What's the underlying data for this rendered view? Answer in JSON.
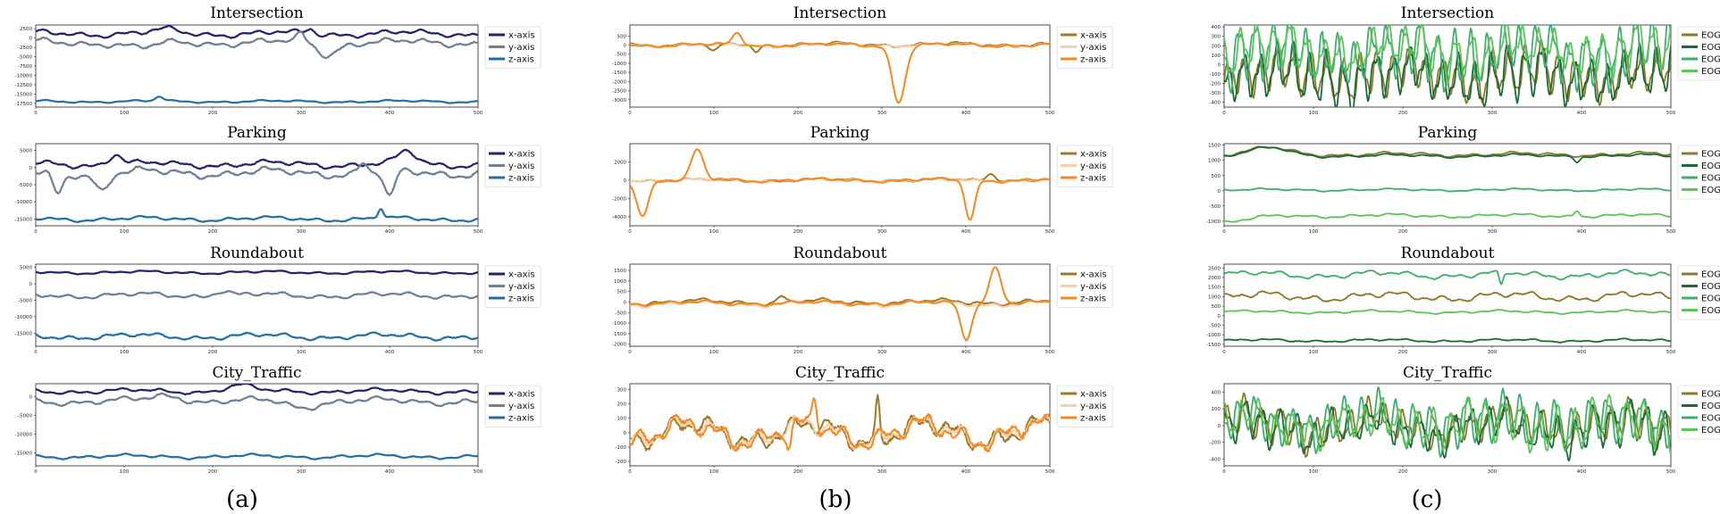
{
  "figure": {
    "captions": [
      "(a)",
      "(b)",
      "(c)"
    ]
  },
  "chart_data": [
    {
      "type": "line",
      "panel": "(a)",
      "title": "Intersection",
      "xlim": [
        0,
        500
      ],
      "ylim": [
        -18500,
        3500
      ],
      "xticks": [
        0,
        100,
        200,
        300,
        400,
        500
      ],
      "yticks": [
        2500,
        0,
        -2500,
        -5000,
        -7500,
        -10000,
        -12500,
        -15000,
        -17500
      ],
      "series": [
        {
          "name": "x-axis",
          "color": "#23236e",
          "base": 1200,
          "amp": 1300,
          "seed": 1,
          "bumps": [
            [
              150,
              900,
              18
            ],
            [
              310,
              1200,
              6
            ]
          ]
        },
        {
          "name": "y-axis",
          "color": "#6f7f95",
          "base": -1200,
          "amp": 1500,
          "seed": 2,
          "bumps": [
            [
              120,
              -1500,
              25
            ],
            [
              330,
              -3200,
              14
            ],
            [
              300,
              2200,
              6
            ]
          ]
        },
        {
          "name": "z-axis",
          "color": "#2370a8",
          "base": -17000,
          "amp": 500,
          "seed": 3,
          "bumps": [
            [
              140,
              1200,
              6
            ]
          ]
        }
      ]
    },
    {
      "type": "line",
      "panel": "(a)",
      "title": "Parking",
      "xlim": [
        0,
        500
      ],
      "ylim": [
        -17000,
        7000
      ],
      "xticks": [
        0,
        100,
        200,
        300,
        400,
        500
      ],
      "yticks": [
        5000,
        0,
        -5000,
        -10000,
        -15000
      ],
      "series": [
        {
          "name": "x-axis",
          "color": "#23236e",
          "base": 1000,
          "amp": 1500,
          "seed": 4,
          "bumps": [
            [
              90,
              3000,
              10
            ],
            [
              420,
              3500,
              14
            ]
          ]
        },
        {
          "name": "y-axis",
          "color": "#6f7f95",
          "base": -1500,
          "amp": 2000,
          "seed": 5,
          "bumps": [
            [
              25,
              -6000,
              8
            ],
            [
              75,
              -5000,
              10
            ],
            [
              400,
              -8000,
              8
            ],
            [
              370,
              3000,
              6
            ]
          ]
        },
        {
          "name": "z-axis",
          "color": "#2370a8",
          "base": -15000,
          "amp": 1000,
          "seed": 6,
          "bumps": [
            [
              390,
              3000,
              4
            ]
          ]
        }
      ]
    },
    {
      "type": "line",
      "panel": "(a)",
      "title": "Roundabout",
      "xlim": [
        0,
        500
      ],
      "ylim": [
        -19000,
        6000
      ],
      "xticks": [
        0,
        100,
        200,
        300,
        400,
        500
      ],
      "yticks": [
        5000,
        0,
        -5000,
        -10000,
        -15000
      ],
      "series": [
        {
          "name": "x-axis",
          "color": "#23236e",
          "base": 3500,
          "amp": 700,
          "seed": 7,
          "bumps": []
        },
        {
          "name": "y-axis",
          "color": "#6f7f95",
          "base": -3500,
          "amp": 1300,
          "seed": 8,
          "bumps": [
            [
              210,
              1500,
              12
            ]
          ]
        },
        {
          "name": "z-axis",
          "color": "#2370a8",
          "base": -16000,
          "amp": 1400,
          "seed": 9,
          "bumps": []
        }
      ]
    },
    {
      "type": "line",
      "panel": "(a)",
      "title": "City_Traffic",
      "xlim": [
        0,
        500
      ],
      "ylim": [
        -18500,
        3500
      ],
      "xticks": [
        0,
        100,
        200,
        300,
        400,
        500
      ],
      "yticks": [
        0,
        -5000,
        -10000,
        -15000
      ],
      "series": [
        {
          "name": "x-axis",
          "color": "#23236e",
          "base": 1500,
          "amp": 1000,
          "seed": 10,
          "bumps": [
            [
              230,
              1500,
              20
            ]
          ]
        },
        {
          "name": "y-axis",
          "color": "#6f7f95",
          "base": -1200,
          "amp": 1400,
          "seed": 11,
          "bumps": [
            [
              150,
              1500,
              25
            ],
            [
              300,
              -1500,
              20
            ]
          ]
        },
        {
          "name": "z-axis",
          "color": "#2370a8",
          "base": -16000,
          "amp": 800,
          "seed": 12,
          "bumps": []
        }
      ]
    },
    {
      "type": "line",
      "panel": "(b)",
      "title": "Intersection",
      "xlim": [
        0,
        500
      ],
      "ylim": [
        -3400,
        1100
      ],
      "xticks": [
        0,
        100,
        200,
        300,
        400,
        500
      ],
      "yticks": [
        500,
        0,
        -500,
        -1000,
        -1500,
        -2000,
        -2500,
        -3000
      ],
      "series": [
        {
          "name": "x-axis",
          "color": "#9c7a26",
          "base": 30,
          "amp": 180,
          "seed": 13,
          "bumps": [
            [
              100,
              -450,
              8
            ],
            [
              150,
              -400,
              6
            ]
          ]
        },
        {
          "name": "y-axis",
          "color": "#f7cfa8",
          "base": 0,
          "amp": 160,
          "seed": 14,
          "bumps": []
        },
        {
          "name": "z-axis",
          "color": "#f5881f",
          "base": 0,
          "amp": 150,
          "seed": 15,
          "bumps": [
            [
              128,
              650,
              8
            ],
            [
              320,
              -3100,
              11
            ]
          ]
        }
      ]
    },
    {
      "type": "line",
      "panel": "(b)",
      "title": "Parking",
      "xlim": [
        0,
        500
      ],
      "ylim": [
        -5000,
        4000
      ],
      "xticks": [
        0,
        100,
        200,
        300,
        400,
        500
      ],
      "yticks": [
        2000,
        0,
        -2000,
        -4000
      ],
      "series": [
        {
          "name": "x-axis",
          "color": "#9c7a26",
          "base": 0,
          "amp": 300,
          "seed": 16,
          "bumps": [
            [
              430,
              800,
              8
            ]
          ]
        },
        {
          "name": "y-axis",
          "color": "#f7cfa8",
          "base": 0,
          "amp": 250,
          "seed": 17,
          "bumps": []
        },
        {
          "name": "z-axis",
          "color": "#f5881f",
          "base": 0,
          "amp": 300,
          "seed": 18,
          "bumps": [
            [
              15,
              -3700,
              10
            ],
            [
              80,
              3200,
              10
            ],
            [
              405,
              -4300,
              8
            ]
          ]
        }
      ]
    },
    {
      "type": "line",
      "panel": "(b)",
      "title": "Roundabout",
      "xlim": [
        0,
        500
      ],
      "ylim": [
        -2100,
        1800
      ],
      "xticks": [
        0,
        100,
        200,
        300,
        400,
        500
      ],
      "yticks": [
        1500,
        1000,
        500,
        0,
        -500,
        -1000,
        -1500,
        -2000
      ],
      "series": [
        {
          "name": "x-axis",
          "color": "#9c7a26",
          "base": 0,
          "amp": 200,
          "seed": 19,
          "bumps": [
            [
              180,
              300,
              6
            ]
          ]
        },
        {
          "name": "y-axis",
          "color": "#f7cfa8",
          "base": -80,
          "amp": 200,
          "seed": 20,
          "bumps": []
        },
        {
          "name": "z-axis",
          "color": "#f5881f",
          "base": -50,
          "amp": 150,
          "seed": 21,
          "bumps": [
            [
              400,
              -1700,
              9
            ],
            [
              435,
              1700,
              10
            ]
          ]
        }
      ]
    },
    {
      "type": "line",
      "panel": "(b)",
      "title": "City_Traffic",
      "xlim": [
        0,
        500
      ],
      "ylim": [
        -230,
        340
      ],
      "xticks": [
        0,
        100,
        200,
        300,
        400,
        500
      ],
      "yticks": [
        300,
        200,
        100,
        0,
        -100,
        -200
      ],
      "series": [
        {
          "name": "x-axis",
          "color": "#9c7a26",
          "base": 0,
          "amp": 150,
          "seed": 22,
          "bumps": [
            [
              295,
              260,
              3
            ]
          ]
        },
        {
          "name": "y-axis",
          "color": "#f7cfa8",
          "base": 0,
          "amp": 140,
          "seed": 23,
          "bumps": []
        },
        {
          "name": "z-axis",
          "color": "#f5881f",
          "base": 0,
          "amp": 150,
          "seed": 24,
          "bumps": [
            [
              220,
              200,
              4
            ],
            [
              190,
              -150,
              4
            ]
          ]
        }
      ]
    },
    {
      "type": "line",
      "panel": "(c)",
      "title": "Intersection",
      "xlim": [
        0,
        500
      ],
      "ylim": [
        -450,
        420
      ],
      "xticks": [
        0,
        100,
        200,
        300,
        400,
        500
      ],
      "yticks": [
        400,
        300,
        200,
        100,
        0,
        -100,
        -200,
        -300,
        -400
      ],
      "series": [
        {
          "name": "EOG-L",
          "color": "#8a7a2c",
          "base": -100,
          "amp": 160,
          "seed": 25,
          "osc": [
            0.34,
            180,
            0
          ]
        },
        {
          "name": "EOG-R",
          "color": "#1a6b33",
          "base": -130,
          "amp": 180,
          "seed": 26,
          "osc": [
            0.34,
            200,
            0.3
          ]
        },
        {
          "name": "EOG-H",
          "color": "#3eae6f",
          "base": 120,
          "amp": 200,
          "seed": 27,
          "osc": [
            0.34,
            220,
            2.2
          ]
        },
        {
          "name": "EOG-V",
          "color": "#5dc45a",
          "base": 150,
          "amp": 180,
          "seed": 28,
          "osc": [
            0.34,
            160,
            1.4
          ]
        }
      ]
    },
    {
      "type": "line",
      "panel": "(c)",
      "title": "Parking",
      "xlim": [
        0,
        500
      ],
      "ylim": [
        -1150,
        1550
      ],
      "xticks": [
        0,
        100,
        200,
        300,
        400,
        500
      ],
      "yticks": [
        1500,
        1000,
        500,
        0,
        -500,
        -1000
      ],
      "series": [
        {
          "name": "EOG-L",
          "color": "#8a7a2c",
          "base": 1200,
          "amp": 100,
          "seed": 29,
          "bumps": [
            [
              50,
              200,
              30
            ]
          ]
        },
        {
          "name": "EOG-R",
          "color": "#1a6b33",
          "base": 1150,
          "amp": 80,
          "seed": 30,
          "bumps": [
            [
              50,
              250,
              30
            ],
            [
              395,
              -150,
              4
            ]
          ]
        },
        {
          "name": "EOG-H",
          "color": "#3eae6f",
          "base": 30,
          "amp": 60,
          "seed": 31,
          "bumps": []
        },
        {
          "name": "EOG-V",
          "color": "#5dc45a",
          "base": -820,
          "amp": 90,
          "seed": 32,
          "bumps": [
            [
              0,
              -200,
              40
            ],
            [
              395,
              200,
              4
            ]
          ]
        }
      ]
    },
    {
      "type": "line",
      "panel": "(c)",
      "title": "Roundabout",
      "xlim": [
        0,
        500
      ],
      "ylim": [
        -1600,
        2700
      ],
      "xticks": [
        0,
        100,
        200,
        300,
        400,
        500
      ],
      "yticks": [
        2500,
        2000,
        1500,
        1000,
        500,
        0,
        -500,
        -1000,
        -1500
      ],
      "series": [
        {
          "name": "EOG-L",
          "color": "#8a7a2c",
          "base": 1000,
          "amp": 350,
          "seed": 33,
          "bumps": []
        },
        {
          "name": "EOG-R",
          "color": "#1a6b33",
          "base": -1300,
          "amp": 120,
          "seed": 34,
          "bumps": []
        },
        {
          "name": "EOG-H",
          "color": "#3eae6f",
          "base": 2150,
          "amp": 280,
          "seed": 35,
          "bumps": [
            [
              310,
              -700,
              3
            ]
          ]
        },
        {
          "name": "EOG-V",
          "color": "#5dc45a",
          "base": 200,
          "amp": 120,
          "seed": 36,
          "bumps": []
        }
      ]
    },
    {
      "type": "line",
      "panel": "(c)",
      "title": "City_Traffic",
      "xlim": [
        0,
        500
      ],
      "ylim": [
        -480,
        500
      ],
      "xticks": [
        0,
        100,
        200,
        300,
        400,
        500
      ],
      "yticks": [
        400,
        200,
        0,
        -200,
        -400
      ],
      "series": [
        {
          "name": "EOG-L",
          "color": "#8a7a2c",
          "base": 0,
          "amp": 200,
          "seed": 37,
          "osc": [
            0.32,
            160,
            0.5
          ]
        },
        {
          "name": "EOG-R",
          "color": "#1a6b33",
          "base": -30,
          "amp": 220,
          "seed": 38,
          "osc": [
            0.32,
            180,
            0.9
          ]
        },
        {
          "name": "EOG-H",
          "color": "#3eae6f",
          "base": 40,
          "amp": 180,
          "seed": 39,
          "osc": [
            0.32,
            200,
            2.6
          ]
        },
        {
          "name": "EOG-V",
          "color": "#5dc45a",
          "base": 20,
          "amp": 200,
          "seed": 40,
          "osc": [
            0.32,
            170,
            1.7
          ]
        }
      ]
    }
  ]
}
